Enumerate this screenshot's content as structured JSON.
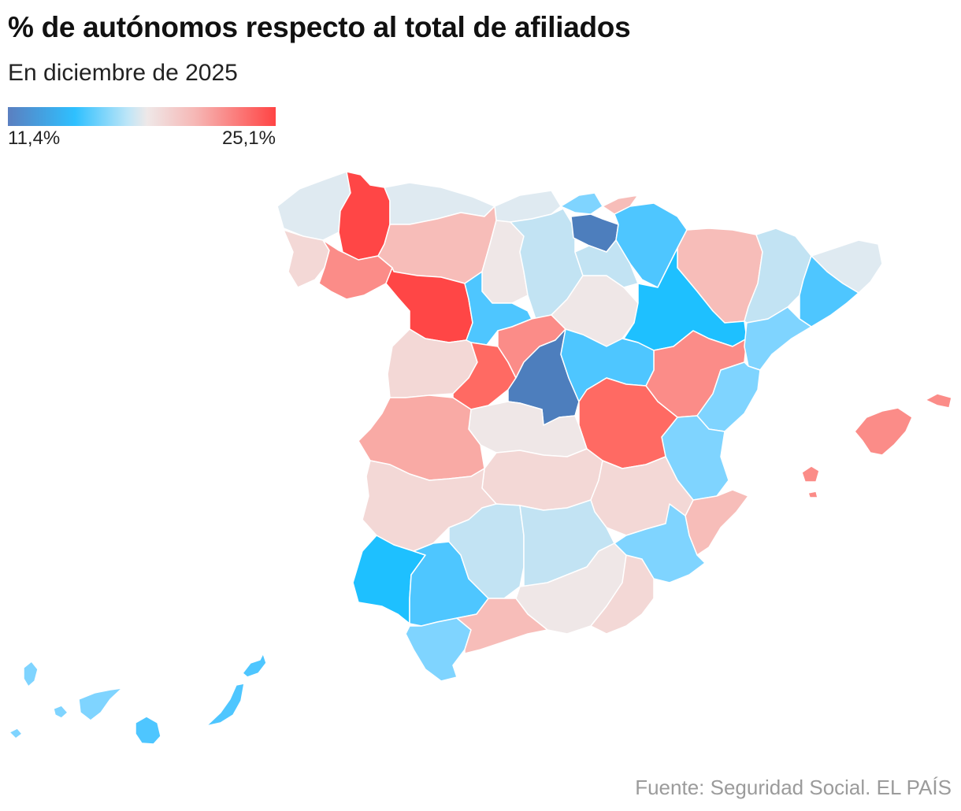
{
  "title": "% de autónomos respecto al total de afiliados",
  "subtitle": "En diciembre de 2025",
  "legend": {
    "min_label": "11,4%",
    "max_label": "25,1%"
  },
  "source": "Fuente: Seguridad Social. EL PAÍS",
  "colors": {
    "darkblue": "#4d7ebd",
    "blue": "#1ec0ff",
    "midblue": "#4ec6ff",
    "lightblue": "#7fd4ff",
    "paleblue": "#c2e3f3",
    "palest": "#dfeaf1",
    "neutral": "#efe7e7",
    "palepink": "#f3d8d6",
    "lightpink": "#f7bdb9",
    "pink": "#f9aaa5",
    "salmon": "#fb8c88",
    "coral": "#ff6a63",
    "red": "#ff4646"
  }
}
